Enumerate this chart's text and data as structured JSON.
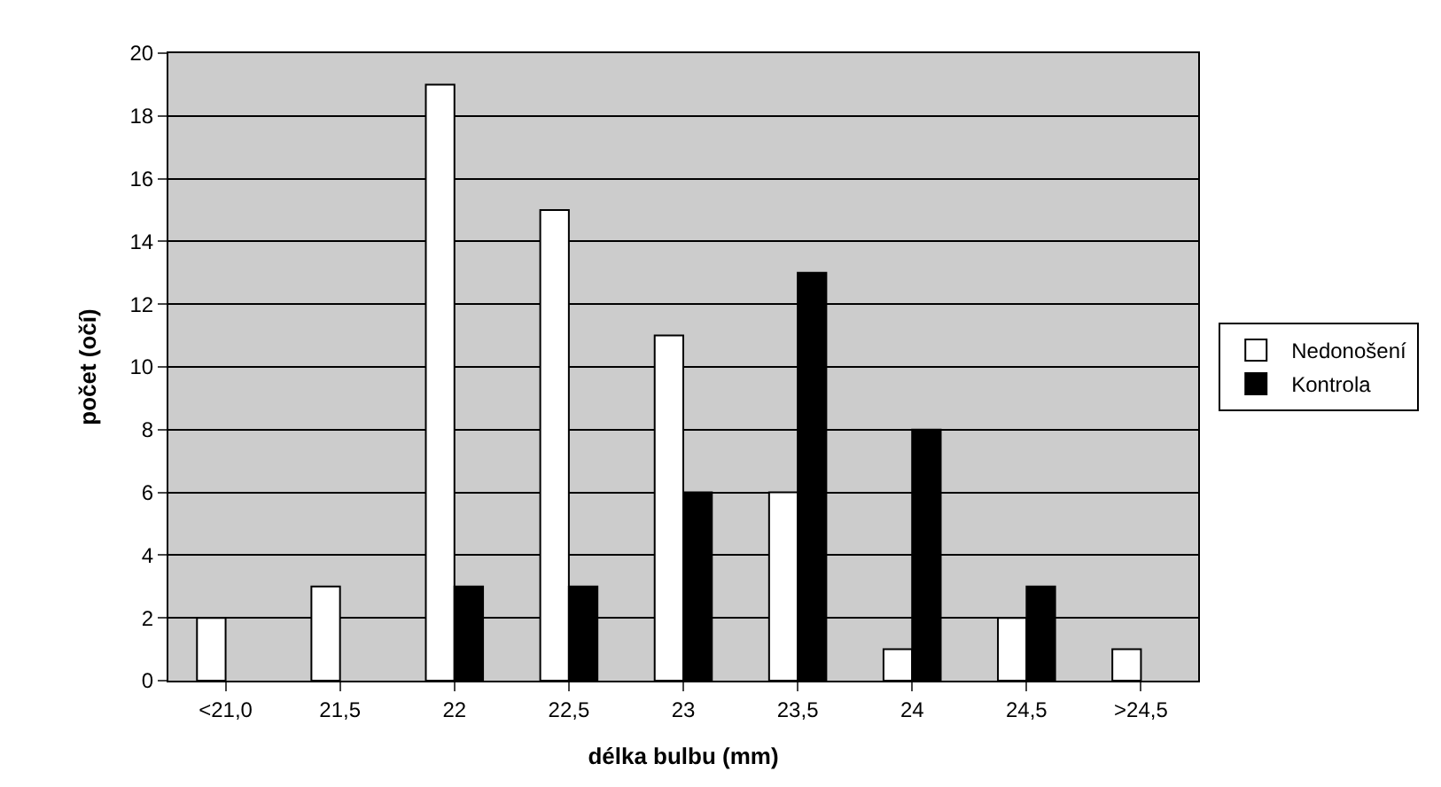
{
  "chart_data": {
    "type": "bar",
    "xlabel": "délka bulbu (mm)",
    "ylabel": "počet (očí)",
    "categories": [
      "<21,0",
      "21,5",
      "22",
      "22,5",
      "23",
      "23,5",
      "24",
      "24,5",
      ">24,5"
    ],
    "series": [
      {
        "name": "Nedonošení",
        "color": "#ffffff",
        "values": [
          2,
          3,
          19,
          15,
          11,
          6,
          1,
          2,
          1
        ]
      },
      {
        "name": "Kontrola",
        "color": "#000000",
        "values": [
          null,
          null,
          3,
          3,
          6,
          13,
          8,
          3,
          null
        ]
      }
    ],
    "ylim": [
      0,
      20
    ],
    "yticks": [
      0,
      2,
      4,
      6,
      8,
      10,
      12,
      14,
      16,
      18,
      20
    ],
    "grid": "y",
    "legend": "right"
  }
}
